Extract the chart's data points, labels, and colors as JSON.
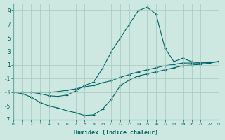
{
  "xlabel": "Humidex (Indice chaleur)",
  "bg_color": "#cce8e0",
  "grid_color": "#a8c8c0",
  "line_color": "#006666",
  "xlim": [
    0,
    23
  ],
  "ylim": [
    -7,
    10
  ],
  "xticks": [
    0,
    1,
    2,
    3,
    4,
    5,
    6,
    7,
    8,
    9,
    10,
    11,
    12,
    13,
    14,
    15,
    16,
    17,
    18,
    19,
    20,
    21,
    22,
    23
  ],
  "yticks": [
    -7,
    -5,
    -3,
    -1,
    1,
    3,
    5,
    7,
    9
  ],
  "curve_spike_x": [
    0,
    1,
    2,
    3,
    4,
    5,
    6,
    7,
    8,
    9,
    10,
    11,
    12,
    13,
    14,
    15,
    16,
    17,
    18,
    19,
    20,
    21,
    22,
    23
  ],
  "curve_spike_y": [
    -3,
    -3,
    -3,
    -3.2,
    -3.5,
    -3.6,
    -3.4,
    -2.8,
    -2,
    -1.5,
    0.5,
    3,
    5,
    7,
    9,
    9.5,
    8.5,
    3.5,
    1.5,
    2.0,
    1.5,
    1.3,
    1.4,
    1.5
  ],
  "curve_dip_x": [
    0,
    1,
    2,
    3,
    4,
    5,
    6,
    7,
    8,
    9,
    10,
    11,
    12,
    13,
    14,
    15,
    16,
    17,
    18,
    19,
    20,
    21,
    22,
    23
  ],
  "curve_dip_y": [
    -3,
    -3.2,
    -3.7,
    -4.5,
    -5,
    -5.3,
    -5.7,
    -6.0,
    -6.4,
    -6.3,
    -5.5,
    -4,
    -2,
    -1.2,
    -0.6,
    -0.3,
    0,
    0.3,
    0.6,
    0.9,
    1.0,
    1.1,
    1.3,
    1.5
  ],
  "curve_flat_x": [
    0,
    1,
    2,
    3,
    4,
    5,
    6,
    7,
    8,
    9,
    10,
    11,
    12,
    13,
    14,
    15,
    16,
    17,
    18,
    19,
    20,
    21,
    22,
    23
  ],
  "curve_flat_y": [
    -3,
    -3,
    -3,
    -3,
    -3,
    -2.9,
    -2.7,
    -2.5,
    -2.2,
    -2,
    -1.6,
    -1.3,
    -0.8,
    -0.4,
    0,
    0.3,
    0.6,
    0.9,
    1.1,
    1.3,
    1.3,
    1.3,
    1.4,
    1.5
  ]
}
